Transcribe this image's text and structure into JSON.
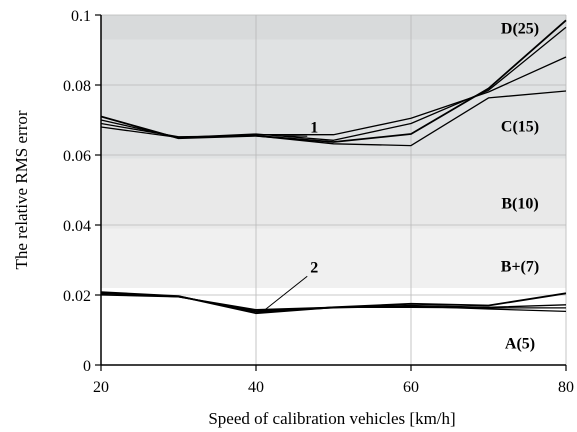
{
  "chart_data": {
    "type": "line",
    "title": "",
    "xlabel": "Speed of calibration vehicles [km/h]",
    "ylabel": "The relative RMS error",
    "xlim": [
      20,
      80
    ],
    "ylim": [
      0,
      0.1
    ],
    "xticks": [
      "20",
      "40",
      "60",
      "80"
    ],
    "yticks": [
      "0",
      "0.02",
      "0.04",
      "0.06",
      "0.08",
      "0.1"
    ],
    "grid": true,
    "bands": [
      {
        "label": "D(25)",
        "range": [
          0.093,
          0.1
        ],
        "color": "#d8dadb"
      },
      {
        "label": "C(15)",
        "range": [
          0.059,
          0.093
        ],
        "color": "#e0e2e3"
      },
      {
        "label": "B(10)",
        "range": [
          0.039,
          0.059
        ],
        "color": "#e9e9e9"
      },
      {
        "label": "B+(7)",
        "range": [
          0.022,
          0.039
        ],
        "color": "#f0f0f0"
      },
      {
        "label": "A(5)",
        "range": [
          0,
          0.022
        ],
        "color": "#ffffff"
      }
    ],
    "annotations": [
      {
        "text": "1",
        "x": 47,
        "y": 0.0665,
        "target_x": 43,
        "target_y": 0.0655
      },
      {
        "text": "2",
        "x": 47,
        "y": 0.0265,
        "target_x": 41,
        "target_y": 0.0155
      }
    ],
    "series": [
      {
        "group": "1",
        "x": [
          20,
          30,
          40,
          50,
          60,
          70,
          80
        ],
        "values": [
          0.071,
          0.0648,
          0.0655,
          0.0637,
          0.066,
          0.079,
          0.0985
        ]
      },
      {
        "group": "1",
        "x": [
          20,
          30,
          40,
          50,
          60,
          70,
          80
        ],
        "values": [
          0.07,
          0.065,
          0.0658,
          0.0658,
          0.0705,
          0.078,
          0.088
        ]
      },
      {
        "group": "1",
        "x": [
          20,
          30,
          40,
          50,
          60,
          70,
          80
        ],
        "values": [
          0.069,
          0.0652,
          0.0655,
          0.0632,
          0.0627,
          0.0763,
          0.0783
        ]
      },
      {
        "group": "1",
        "x": [
          20,
          30,
          40,
          50,
          60,
          70,
          80
        ],
        "values": [
          0.068,
          0.065,
          0.066,
          0.0642,
          0.069,
          0.0785,
          0.0965
        ]
      },
      {
        "group": "2",
        "x": [
          20,
          30,
          40,
          50,
          60,
          70,
          80
        ],
        "values": [
          0.0208,
          0.0197,
          0.0148,
          0.0165,
          0.0175,
          0.017,
          0.0205
        ]
      },
      {
        "group": "2",
        "x": [
          20,
          30,
          40,
          50,
          60,
          70,
          80
        ],
        "values": [
          0.0205,
          0.0195,
          0.0155,
          0.0165,
          0.017,
          0.0165,
          0.0172
        ]
      },
      {
        "group": "2",
        "x": [
          20,
          30,
          40,
          50,
          60,
          70,
          80
        ],
        "values": [
          0.02,
          0.0195,
          0.0158,
          0.0165,
          0.0165,
          0.0163,
          0.0163
        ]
      },
      {
        "group": "2",
        "x": [
          20,
          30,
          40,
          50,
          60,
          70,
          80
        ],
        "values": [
          0.0203,
          0.0197,
          0.0152,
          0.0163,
          0.0168,
          0.016,
          0.0153
        ]
      }
    ]
  }
}
